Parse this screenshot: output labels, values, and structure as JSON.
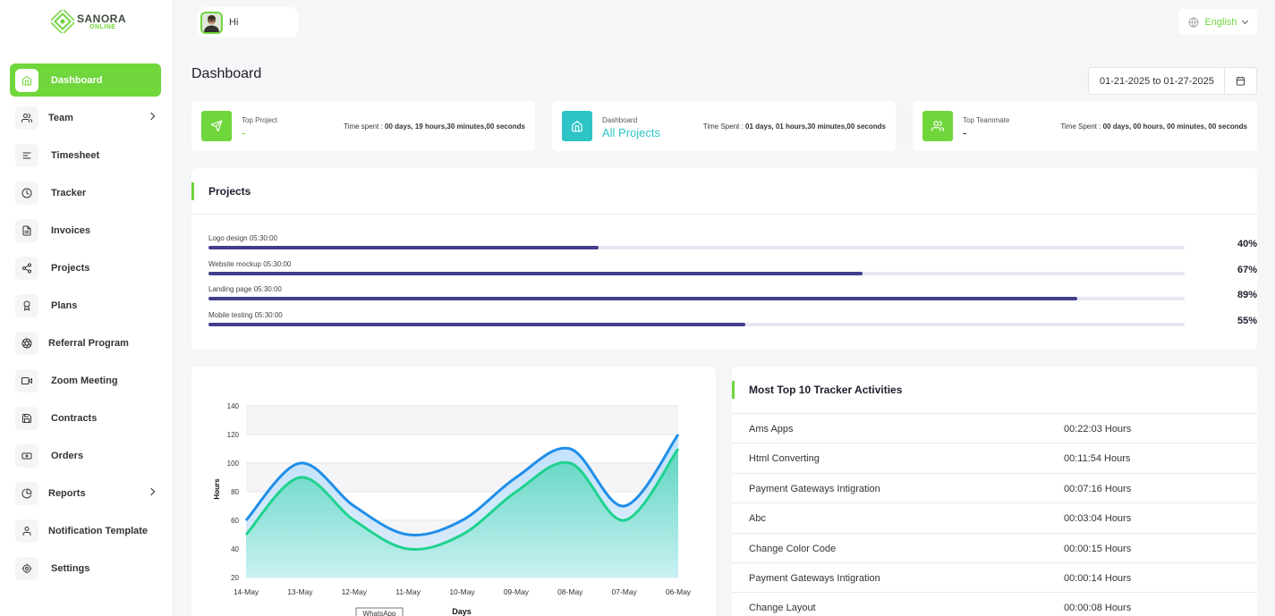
{
  "brand": {
    "line1": "SANORA",
    "line2": "ONLINE"
  },
  "header": {
    "greeting": "Hi",
    "language": "English"
  },
  "colors": {
    "accent": "#6fd63b",
    "teal": "#2ec4c7",
    "progress": "#433e8c",
    "series_hours_top": "#1f8ee8",
    "series_hours_bottom": "#1fd28f"
  },
  "sidebar": {
    "items": [
      {
        "label": "Dashboard",
        "icon": "home-icon",
        "active": true
      },
      {
        "label": "Team",
        "icon": "users-icon",
        "submenu": true
      },
      {
        "label": "Timesheet",
        "icon": "list-icon"
      },
      {
        "label": "Tracker",
        "icon": "clock-icon"
      },
      {
        "label": "Invoices",
        "icon": "file-icon"
      },
      {
        "label": "Projects",
        "icon": "share-icon"
      },
      {
        "label": "Plans",
        "icon": "award-icon"
      },
      {
        "label": "Referral Program",
        "icon": "aperture-icon"
      },
      {
        "label": "Zoom Meeting",
        "icon": "video-icon"
      },
      {
        "label": "Contracts",
        "icon": "save-icon"
      },
      {
        "label": "Orders",
        "icon": "cash-icon"
      },
      {
        "label": "Reports",
        "icon": "pie-chart-icon",
        "submenu": true
      },
      {
        "label": "Notification Template",
        "icon": "user-icon"
      },
      {
        "label": "Settings",
        "icon": "gear-icon"
      }
    ]
  },
  "main": {
    "title": "Dashboard",
    "date_range": "01-21-2025 to 01-27-2025",
    "stats": [
      {
        "label": "Top Project",
        "value": "-",
        "time_label": "Time spent : ",
        "time_value": "00 days, 19 hours,30 minutes,00 seconds"
      },
      {
        "label": "Dashboard",
        "value": "All Projects",
        "time_label": "Time Spent : ",
        "time_value": "01 days, 01 hours,30 minutes,00 seconds"
      },
      {
        "label": "Top Teammate",
        "value": "-",
        "time_label": "Time Spent : ",
        "time_value": "00 days, 00 hours, 00 minutes, 00 seconds"
      }
    ],
    "projects": {
      "title": "Projects",
      "items": [
        {
          "name": "Logo design",
          "time": "05:30:00",
          "percent": 40,
          "percent_label": "40%"
        },
        {
          "name": "Website mockup",
          "time": "05:30:00",
          "percent": 67,
          "percent_label": "67%"
        },
        {
          "name": "Landing page",
          "time": "05:30:00",
          "percent": 89,
          "percent_label": "89%"
        },
        {
          "name": "Mobile testing",
          "time": "05:30:00",
          "percent": 55,
          "percent_label": "55%"
        }
      ]
    },
    "activities": {
      "title": "Most Top 10 Tracker Activities",
      "rows": [
        {
          "name": "Ams Apps",
          "time": "00:22:03 Hours"
        },
        {
          "name": "Html Converting",
          "time": "00:11:54 Hours"
        },
        {
          "name": "Payment Gateways Intigration",
          "time": "00:07:16 Hours"
        },
        {
          "name": "Abc",
          "time": "00:03:04 Hours"
        },
        {
          "name": "Change Color Code",
          "time": "00:00:15 Hours"
        },
        {
          "name": "Payment Gateways Intigration",
          "time": "00:00:14 Hours"
        },
        {
          "name": "Change Layout",
          "time": "00:00:08 Hours"
        }
      ]
    }
  },
  "chart_data": {
    "type": "area",
    "categories": [
      "14-May",
      "13-May",
      "12-May",
      "11-May",
      "10-May",
      "09-May",
      "08-May",
      "07-May",
      "06-May"
    ],
    "series": [
      {
        "values": [
          60,
          100,
          70,
          50,
          60,
          90,
          110,
          70,
          120
        ]
      },
      {
        "values": [
          50,
          90,
          60,
          40,
          50,
          80,
          100,
          60,
          110
        ]
      }
    ],
    "xlabel": "Days",
    "ylabel": "Hours",
    "ylim": [
      20,
      140
    ],
    "yticks": [
      20,
      40,
      60,
      80,
      100,
      120,
      140
    ],
    "grid": true,
    "badge": "WhatsApp"
  }
}
